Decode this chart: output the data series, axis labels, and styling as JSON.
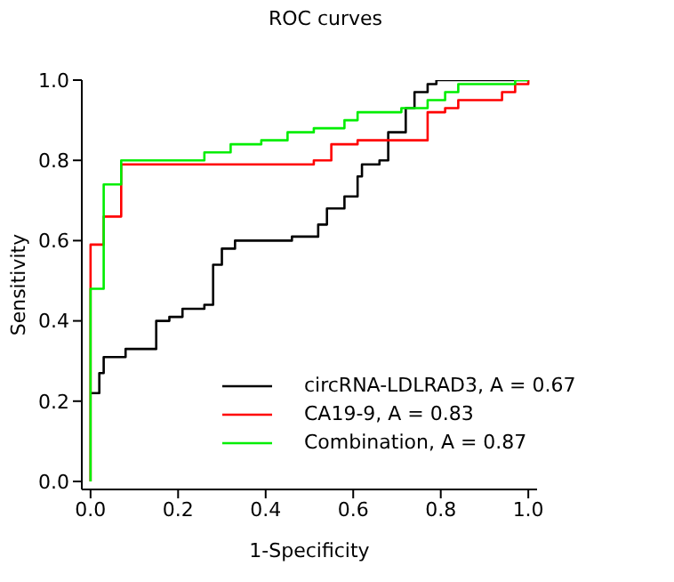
{
  "chart_data": {
    "type": "step",
    "title": "ROC curves",
    "xlabel": "1-Specificity",
    "ylabel": "Sensitivity",
    "xlim": [
      -0.02,
      1.02
    ],
    "ylim": [
      -0.02,
      1
    ],
    "xticks": [
      {
        "value": 0,
        "label": "0.0"
      },
      {
        "value": 0.2,
        "label": "0.2"
      },
      {
        "value": 0.4,
        "label": "0.4"
      },
      {
        "value": 0.6,
        "label": "0.6"
      },
      {
        "value": 0.8,
        "label": "0.8"
      },
      {
        "value": 1,
        "label": "1.0"
      }
    ],
    "yticks": [
      {
        "value": 0,
        "label": "0.0"
      },
      {
        "value": 0.2,
        "label": "0.2"
      },
      {
        "value": 0.4,
        "label": "0.4"
      },
      {
        "value": 0.6,
        "label": "0.6"
      },
      {
        "value": 0.8,
        "label": "0.8"
      },
      {
        "value": 1,
        "label": "1.0"
      }
    ],
    "grid": false,
    "legend": "bottom right",
    "marker": "none",
    "line_style": "solid",
    "series": [
      {
        "name": "circRNA-LDLRAD3, A = 0.67",
        "color": "#000000",
        "x": [
          0,
          0.02,
          0.03,
          0.08,
          0.15,
          0.18,
          0.21,
          0.26,
          0.28,
          0.3,
          0.33,
          0.46,
          0.52,
          0.54,
          0.58,
          0.61,
          0.62,
          0.66,
          0.68,
          0.72,
          0.74,
          0.77,
          0.79,
          1
        ],
        "values": [
          0.22,
          0.27,
          0.31,
          0.33,
          0.4,
          0.41,
          0.43,
          0.44,
          0.54,
          0.58,
          0.6,
          0.61,
          0.64,
          0.68,
          0.71,
          0.76,
          0.79,
          0.8,
          0.87,
          0.93,
          0.97,
          0.99,
          1,
          1
        ]
      },
      {
        "name": "CA19-9, A = 0.83",
        "color": "#ff0000",
        "x": [
          0,
          0,
          0.03,
          0.07,
          0.51,
          0.55,
          0.61,
          0.77,
          0.81,
          0.84,
          0.94,
          0.97,
          1
        ],
        "values": [
          0,
          0.59,
          0.66,
          0.79,
          0.8,
          0.84,
          0.85,
          0.92,
          0.93,
          0.95,
          0.97,
          0.99,
          1
        ]
      },
      {
        "name": "Combination, A = 0.87",
        "color": "#00ee00",
        "x": [
          0,
          0,
          0.03,
          0.07,
          0.26,
          0.32,
          0.39,
          0.45,
          0.51,
          0.58,
          0.61,
          0.71,
          0.77,
          0.81,
          0.84,
          0.97,
          1
        ],
        "values": [
          0,
          0.48,
          0.74,
          0.8,
          0.82,
          0.84,
          0.85,
          0.87,
          0.88,
          0.9,
          0.92,
          0.93,
          0.95,
          0.97,
          0.99,
          1,
          1
        ]
      }
    ]
  }
}
